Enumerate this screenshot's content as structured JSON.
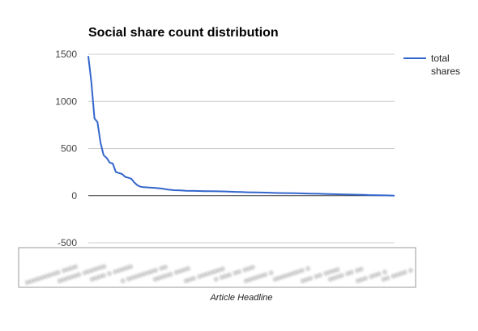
{
  "chart_data": {
    "type": "line",
    "title": "Social share count distribution",
    "xlabel": "Article Headline",
    "ylabel": "",
    "ylim": [
      -500,
      1500
    ],
    "yticks": [
      1500,
      1000,
      500,
      0,
      -500
    ],
    "grid": true,
    "legend_position": "right",
    "line_color": "#3366cc",
    "series": [
      {
        "name": "total shares",
        "x": [
          0,
          1,
          2,
          3,
          4,
          5,
          6,
          7,
          8,
          9,
          10,
          11,
          12,
          13,
          14,
          15,
          16,
          17,
          18,
          19,
          20,
          22,
          24,
          26,
          28,
          30,
          32,
          35,
          38,
          40,
          42,
          45,
          48,
          50,
          52,
          55,
          58,
          60,
          62,
          65,
          68,
          70,
          72,
          75,
          78,
          80,
          82,
          85,
          88,
          90,
          92,
          95,
          98,
          100
        ],
        "values": [
          1480,
          1200,
          820,
          780,
          560,
          430,
          400,
          350,
          340,
          250,
          240,
          230,
          200,
          190,
          180,
          140,
          110,
          95,
          90,
          88,
          85,
          82,
          75,
          65,
          58,
          55,
          52,
          50,
          48,
          47,
          46,
          44,
          40,
          38,
          36,
          34,
          32,
          30,
          28,
          27,
          25,
          24,
          22,
          20,
          18,
          16,
          14,
          12,
          10,
          8,
          6,
          4,
          2,
          0
        ]
      }
    ]
  },
  "x_axis_labels_blurred": true
}
